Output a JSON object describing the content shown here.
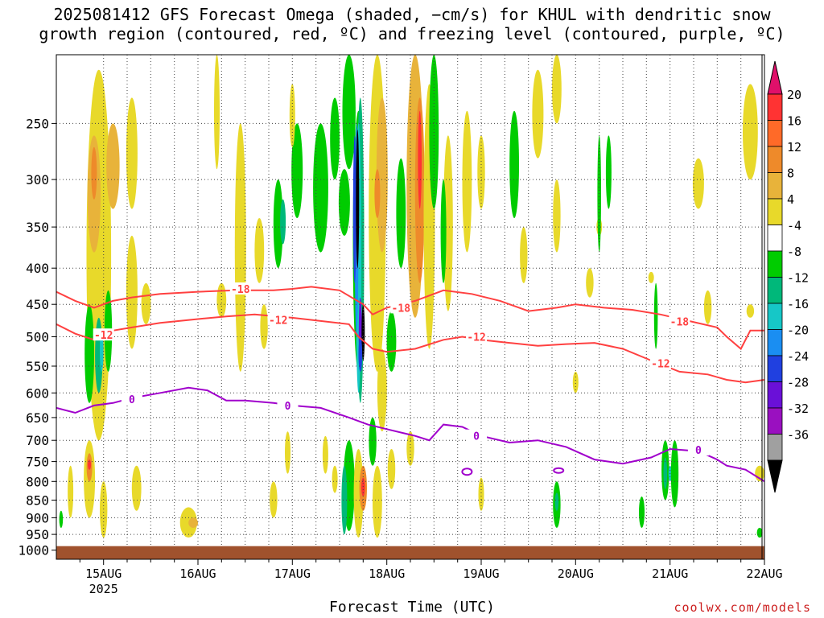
{
  "title": "2025081412 GFS Forecast Omega (shaded, −cm/s) for KHUL with dendritic snow\ngrowth region (contoured, red, ºC) and freezing level (contoured, purple, ºC)",
  "xlabel": "Forecast Time (UTC)",
  "credit": "coolwx.com/models",
  "chart_data": {
    "type": "heatmap",
    "x_axis": {
      "range": [
        "2025-08-14T12",
        "2025-08-22T00"
      ],
      "tick_labels": [
        "15AUG",
        "16AUG",
        "17AUG",
        "18AUG",
        "19AUG",
        "20AUG",
        "21AUG",
        "22AUG"
      ],
      "year_label": "2025"
    },
    "y_axis": {
      "scale": "log-pressure (inverted)",
      "range": [
        1030,
        200
      ],
      "tick_labels": [
        "250",
        "300",
        "350",
        "400",
        "450",
        "500",
        "550",
        "600",
        "650",
        "700",
        "750",
        "800",
        "850",
        "900",
        "950",
        "1000"
      ]
    },
    "grid": "dotted",
    "colorbar": {
      "labels": [
        "20",
        "16",
        "12",
        "8",
        "4",
        "-4",
        "-8",
        "-12",
        "-16",
        "-20",
        "-24",
        "-28",
        "-32",
        "-36"
      ],
      "colors": [
        "#ff3333",
        "#ff6a28",
        "#ee8a2a",
        "#e8b33a",
        "#e8d92a",
        "#ffffff",
        "#00cc00",
        "#00b87a",
        "#16c7c7",
        "#1a8ef2",
        "#2040e0",
        "#6a10d8",
        "#9a10c0",
        "#a0a0a0"
      ],
      "top_color": "#e0106a",
      "bottom_color": "#000000"
    },
    "contours": [
      {
        "label": "-18",
        "color": "#ff4040",
        "level": -18,
        "days": [
          14.5,
          14.7,
          14.9,
          15.1,
          15.3,
          15.6,
          16.0,
          16.4,
          16.8,
          17.0,
          17.2,
          17.5,
          17.75,
          17.85,
          18.0,
          18.3,
          18.6,
          18.9,
          19.2,
          19.5,
          19.8,
          20.0,
          20.3,
          20.6,
          20.9,
          21.2,
          21.5,
          21.6,
          21.75,
          21.85,
          22.0
        ],
        "pressure": [
          432,
          445,
          455,
          445,
          440,
          435,
          432,
          430,
          430,
          428,
          425,
          430,
          450,
          465,
          455,
          445,
          430,
          435,
          445,
          460,
          455,
          450,
          455,
          458,
          465,
          475,
          485,
          500,
          520,
          490,
          490
        ]
      },
      {
        "label": "-12",
        "color": "#ff4040",
        "level": -12,
        "days": [
          14.5,
          14.7,
          14.9,
          15.1,
          15.3,
          15.6,
          16.0,
          16.3,
          16.6,
          17.0,
          17.3,
          17.6,
          17.7,
          17.85,
          18.0,
          18.3,
          18.6,
          18.8,
          19.0,
          19.3,
          19.6,
          19.9,
          20.2,
          20.5,
          20.8,
          21.1,
          21.4,
          21.6,
          21.8,
          22.0
        ],
        "pressure": [
          480,
          495,
          505,
          490,
          485,
          478,
          472,
          468,
          465,
          470,
          475,
          480,
          500,
          520,
          525,
          520,
          505,
          500,
          505,
          510,
          515,
          512,
          510,
          520,
          540,
          560,
          565,
          575,
          580,
          575
        ]
      },
      {
        "label": "0",
        "color": "#a000cc",
        "level": 0,
        "days": [
          14.5,
          14.7,
          14.9,
          15.1,
          15.3,
          15.6,
          15.9,
          16.1,
          16.3,
          16.5,
          16.8,
          17.0,
          17.3,
          17.6,
          17.8,
          18.0,
          18.3,
          18.45,
          18.6,
          18.8,
          19.0,
          19.3,
          19.6,
          19.9,
          20.2,
          20.5,
          20.8,
          21.0,
          21.3,
          21.5,
          21.6,
          21.8,
          22.0
        ],
        "pressure": [
          630,
          640,
          625,
          620,
          610,
          600,
          590,
          595,
          615,
          615,
          620,
          625,
          630,
          650,
          665,
          675,
          690,
          700,
          665,
          670,
          690,
          705,
          700,
          715,
          745,
          755,
          740,
          720,
          725,
          745,
          760,
          770,
          800
        ]
      }
    ]
  }
}
